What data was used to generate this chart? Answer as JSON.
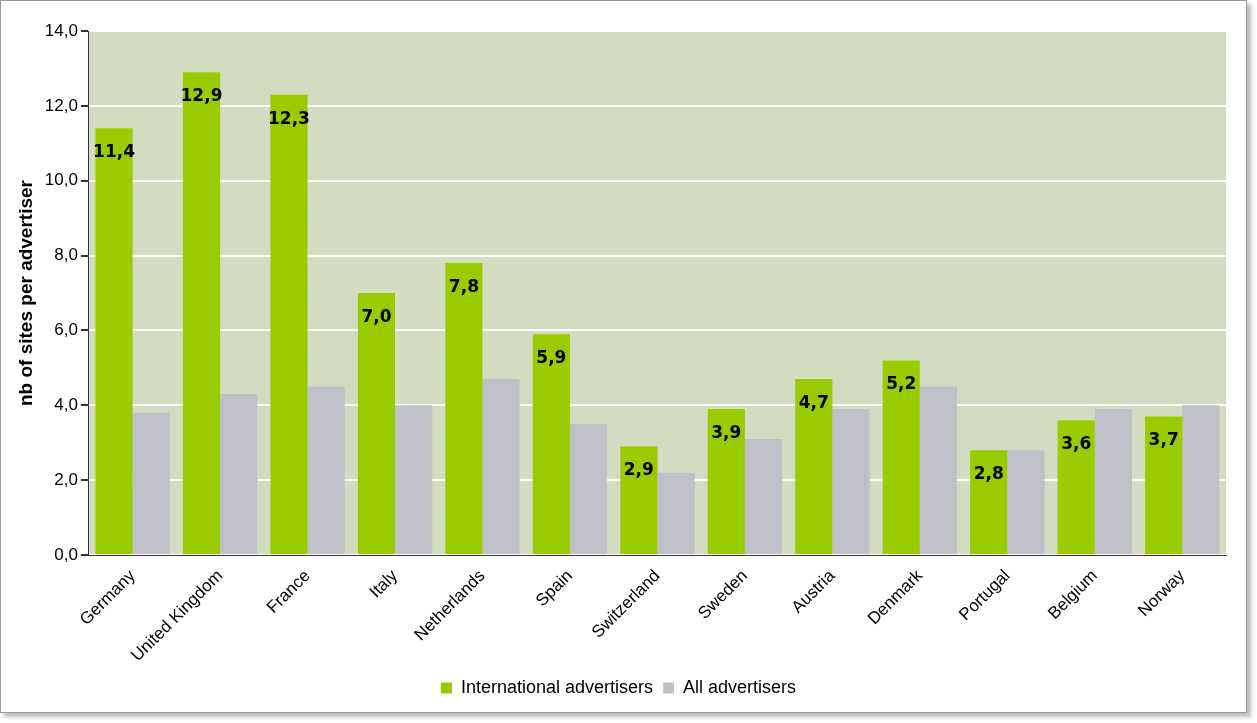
{
  "chart_data": {
    "type": "bar",
    "ylabel": "nb of sites per advertiser",
    "categories": [
      "Germany",
      "United Kingdom",
      "France",
      "Italy",
      "Netherlands",
      "Spain",
      "Switzerland",
      "Sweden",
      "Austria",
      "Denmark",
      "Portugal",
      "Belgium",
      "Norway"
    ],
    "series": [
      {
        "name": "International advertisers",
        "color": "#99cc00",
        "values": [
          11.4,
          12.9,
          12.3,
          7.0,
          7.8,
          5.9,
          2.9,
          3.9,
          4.7,
          5.2,
          2.8,
          3.6,
          3.7
        ],
        "value_labels": [
          "11,4",
          "12,9",
          "12,3",
          "7,0",
          "7,8",
          "5,9",
          "2,9",
          "3,9",
          "4,7",
          "5,2",
          "2,8",
          "3,6",
          "3,7"
        ]
      },
      {
        "name": "All advertisers",
        "color": "#c0c0c8",
        "values": [
          3.8,
          4.3,
          4.5,
          4.0,
          4.7,
          3.5,
          2.2,
          3.1,
          3.9,
          4.5,
          2.8,
          3.9,
          4.0
        ]
      }
    ],
    "ylim": [
      0,
      14
    ],
    "yticks": [
      {
        "value": 0,
        "label": "0,0"
      },
      {
        "value": 2,
        "label": "2,0"
      },
      {
        "value": 4,
        "label": "4,0"
      },
      {
        "value": 6,
        "label": "6,0"
      },
      {
        "value": 8,
        "label": "8,0"
      },
      {
        "value": 10,
        "label": "10,0"
      },
      {
        "value": 12,
        "label": "12,0"
      },
      {
        "value": 14,
        "label": "14,0"
      }
    ],
    "grid": "y",
    "legend": "bottom"
  }
}
